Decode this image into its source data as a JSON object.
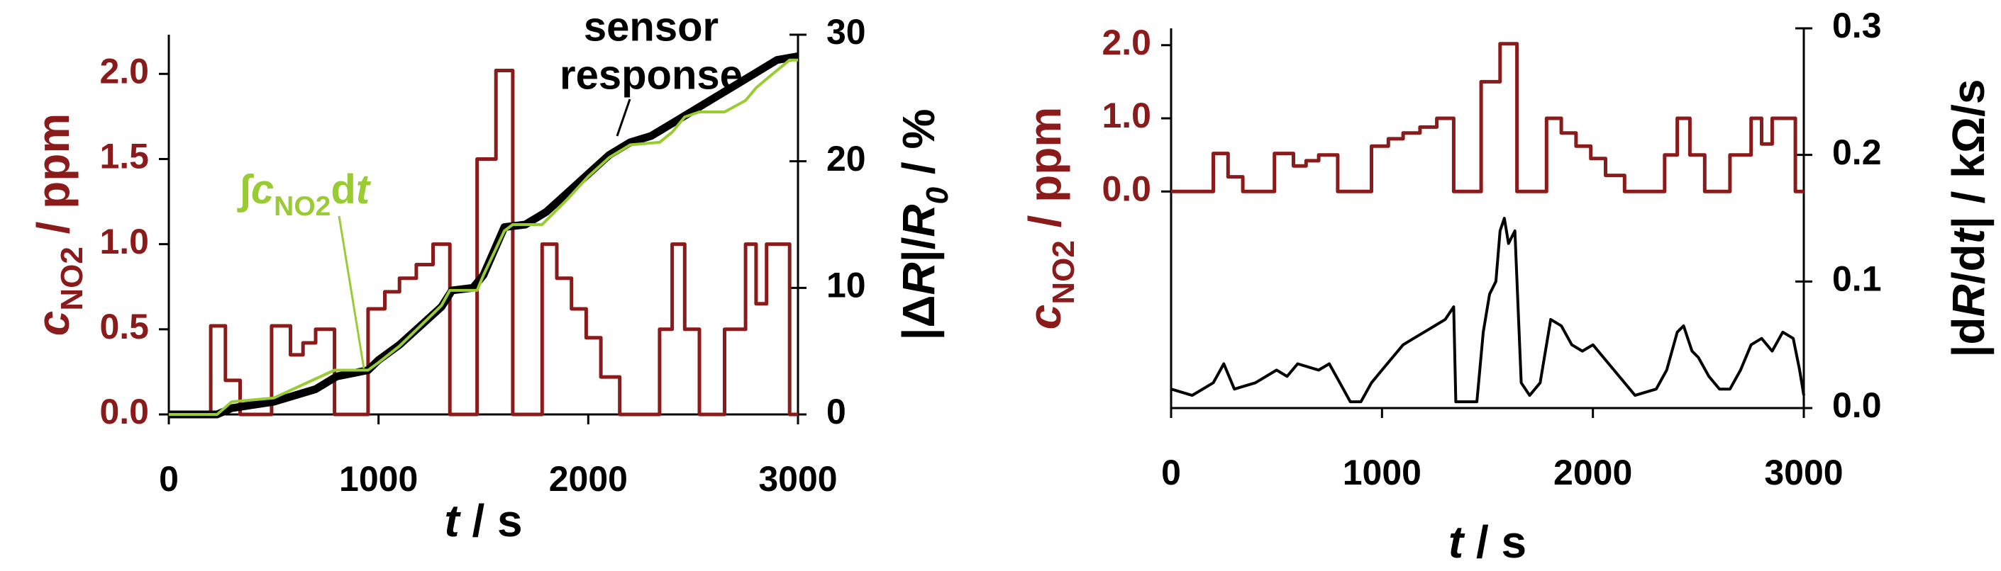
{
  "chart_data": [
    {
      "type": "line",
      "x_label_parts": [
        {
          "text": "t",
          "style": "italic"
        },
        {
          "text": " / s",
          "style": "normal"
        }
      ],
      "y_label_parts": [
        {
          "text": "c",
          "style": "italic"
        },
        {
          "text": "NO2",
          "style": "sub"
        },
        {
          "text": " / ppm",
          "style": "normal"
        }
      ],
      "y2_label_parts": [
        {
          "text": "|Δ",
          "style": "normal"
        },
        {
          "text": "R",
          "style": "italic"
        },
        {
          "text": "|/",
          "style": "normal"
        },
        {
          "text": "R",
          "style": "italic"
        },
        {
          "text": "0",
          "style": "italic-sub"
        },
        {
          "text": " / %",
          "style": "normal"
        }
      ],
      "xlim": [
        0,
        3000
      ],
      "xticks": [
        0,
        1000,
        2000,
        3000
      ],
      "ylim": [
        0,
        2.23
      ],
      "yticks": [
        {
          "value": 0,
          "label": "0.0"
        },
        {
          "value": 0.5,
          "label": "0.5"
        },
        {
          "value": 1,
          "label": "1.0"
        },
        {
          "value": 1.5,
          "label": "1.5"
        },
        {
          "value": 2,
          "label": "2.0"
        }
      ],
      "y2lim": [
        0,
        30
      ],
      "y2ticks": [
        0,
        10,
        20,
        30
      ],
      "y_color": "#8b1a1a",
      "series": [
        {
          "color": "#8b1a1a",
          "axis": "y",
          "width": 5,
          "x": [
            0,
            200,
            200,
            270,
            270,
            340,
            340,
            490,
            490,
            580,
            580,
            640,
            640,
            700,
            700,
            790,
            790,
            950,
            950,
            1030,
            1030,
            1100,
            1100,
            1180,
            1180,
            1260,
            1260,
            1340,
            1340,
            1470,
            1470,
            1560,
            1560,
            1640,
            1640,
            1780,
            1780,
            1850,
            1850,
            1920,
            1920,
            1990,
            1990,
            2060,
            2060,
            2150,
            2150,
            2340,
            2340,
            2400,
            2400,
            2460,
            2460,
            2530,
            2530,
            2650,
            2650,
            2750,
            2750,
            2800,
            2800,
            2850,
            2850,
            2960,
            2960,
            3000
          ],
          "values": [
            0,
            0,
            0.52,
            0.52,
            0.2,
            0.2,
            0,
            0,
            0.52,
            0.52,
            0.35,
            0.35,
            0.42,
            0.42,
            0.5,
            0.5,
            0,
            0,
            0.62,
            0.62,
            0.72,
            0.72,
            0.8,
            0.8,
            0.88,
            0.88,
            1.0,
            1.0,
            0,
            0,
            1.5,
            1.5,
            2.02,
            2.02,
            0,
            0,
            1.0,
            1.0,
            0.8,
            0.8,
            0.62,
            0.62,
            0.45,
            0.45,
            0.22,
            0.22,
            0,
            0,
            0.5,
            0.5,
            1.0,
            1.0,
            0.5,
            0.5,
            0,
            0,
            0.5,
            0.5,
            1.0,
            1.0,
            0.65,
            0.65,
            1.0,
            1.0,
            0,
            0
          ]
        },
        {
          "color": "#000000",
          "axis": "y2",
          "width": 11,
          "name_lines": [
            "sensor",
            "response"
          ],
          "x": [
            0,
            230,
            300,
            500,
            700,
            800,
            950,
            1000,
            1100,
            1200,
            1300,
            1350,
            1450,
            1500,
            1600,
            1700,
            1800,
            1900,
            2000,
            2100,
            2200,
            2300,
            2400,
            2500,
            2600,
            2700,
            2800,
            2900,
            3000
          ],
          "values": [
            0,
            0,
            0.5,
            1,
            2,
            3,
            3.5,
            4.3,
            5.5,
            7,
            8.5,
            9.8,
            10,
            11,
            14.8,
            15,
            16,
            17.5,
            19,
            20.5,
            21.5,
            22,
            23,
            24,
            25,
            26,
            27,
            28,
            28.3
          ]
        },
        {
          "color": "#99cc33",
          "axis": "y2",
          "width": 4,
          "name_parts": [
            {
              "text": "∫",
              "style": "normal"
            },
            {
              "text": "c",
              "style": "italic"
            },
            {
              "text": "NO2",
              "style": "sub"
            },
            {
              "text": "d",
              "style": "normal"
            },
            {
              "text": "t",
              "style": "italic"
            }
          ],
          "x": [
            0,
            230,
            300,
            500,
            790,
            950,
            1000,
            1100,
            1200,
            1300,
            1340,
            1470,
            1500,
            1600,
            1640,
            1780,
            1900,
            2000,
            2100,
            2200,
            2340,
            2400,
            2460,
            2530,
            2650,
            2750,
            2800,
            2850,
            2960,
            3000
          ],
          "values": [
            0,
            0,
            1,
            1.3,
            3.5,
            3.5,
            4.1,
            5.4,
            7,
            8.6,
            9.8,
            9.8,
            11,
            14.5,
            15,
            15,
            17,
            18.8,
            20.3,
            21.3,
            21.5,
            22.3,
            23.5,
            23.9,
            23.9,
            24.8,
            25.8,
            26.5,
            28,
            28
          ]
        }
      ]
    },
    {
      "type": "line",
      "x_label_parts": [
        {
          "text": "t",
          "style": "italic"
        },
        {
          "text": " / s",
          "style": "normal"
        }
      ],
      "y_label_parts": [
        {
          "text": "c",
          "style": "italic"
        },
        {
          "text": "NO2",
          "style": "sub"
        },
        {
          "text": " / ppm",
          "style": "normal"
        }
      ],
      "y2_label_parts": [
        {
          "text": "|d",
          "style": "normal"
        },
        {
          "text": "R",
          "style": "italic"
        },
        {
          "text": "/d",
          "style": "normal"
        },
        {
          "text": "t",
          "style": "italic"
        },
        {
          "text": "| / kΩ/s",
          "style": "normal"
        }
      ],
      "xlim": [
        0,
        3000
      ],
      "xticks": [
        0,
        1000,
        2000,
        3000
      ],
      "ylim": [
        -2.96,
        2.23
      ],
      "yticks": [
        {
          "value": 0,
          "label": "0.0"
        },
        {
          "value": 1,
          "label": "1.0"
        },
        {
          "value": 2,
          "label": "2.0"
        }
      ],
      "y2lim": [
        0,
        0.3
      ],
      "y2ticks": [
        {
          "value": 0,
          "label": "0.0"
        },
        {
          "value": 0.1,
          "label": "0.1"
        },
        {
          "value": 0.2,
          "label": "0.2"
        },
        {
          "value": 0.3,
          "label": "0.3"
        }
      ],
      "y_color": "#8b1a1a",
      "series": [
        {
          "color": "#8b1a1a",
          "axis": "y",
          "width": 5,
          "x": [
            0,
            200,
            200,
            270,
            270,
            340,
            340,
            490,
            490,
            580,
            580,
            640,
            640,
            700,
            700,
            790,
            790,
            950,
            950,
            1030,
            1030,
            1100,
            1100,
            1180,
            1180,
            1260,
            1260,
            1340,
            1340,
            1470,
            1470,
            1560,
            1560,
            1640,
            1640,
            1780,
            1780,
            1850,
            1850,
            1920,
            1920,
            1990,
            1990,
            2060,
            2060,
            2150,
            2150,
            2340,
            2340,
            2400,
            2400,
            2460,
            2460,
            2530,
            2530,
            2650,
            2650,
            2750,
            2750,
            2800,
            2800,
            2850,
            2850,
            2960,
            2960,
            3000
          ],
          "values": [
            0,
            0,
            0.52,
            0.52,
            0.2,
            0.2,
            0,
            0,
            0.52,
            0.52,
            0.35,
            0.35,
            0.42,
            0.42,
            0.5,
            0.5,
            0,
            0,
            0.62,
            0.62,
            0.72,
            0.72,
            0.8,
            0.8,
            0.88,
            0.88,
            1.0,
            1.0,
            0,
            0,
            1.5,
            1.5,
            2.02,
            2.02,
            0,
            0,
            1.0,
            1.0,
            0.8,
            0.8,
            0.62,
            0.62,
            0.45,
            0.45,
            0.22,
            0.22,
            0,
            0,
            0.5,
            0.5,
            1.0,
            1.0,
            0.5,
            0.5,
            0,
            0,
            0.5,
            0.5,
            1.0,
            1.0,
            0.65,
            0.65,
            1.0,
            1.0,
            0,
            0
          ]
        },
        {
          "color": "#000000",
          "axis": "y2",
          "width": 4,
          "x": [
            0,
            100,
            200,
            250,
            300,
            400,
            500,
            550,
            600,
            700,
            750,
            800,
            850,
            900,
            950,
            1000,
            1050,
            1100,
            1150,
            1200,
            1250,
            1300,
            1340,
            1350,
            1450,
            1480,
            1510,
            1540,
            1560,
            1580,
            1600,
            1630,
            1660,
            1700,
            1750,
            1800,
            1850,
            1900,
            1950,
            2000,
            2050,
            2100,
            2150,
            2200,
            2300,
            2350,
            2400,
            2430,
            2470,
            2500,
            2550,
            2600,
            2650,
            2700,
            2750,
            2800,
            2850,
            2900,
            2950,
            2980,
            3000
          ],
          "values": [
            0.015,
            0.01,
            0.02,
            0.035,
            0.015,
            0.02,
            0.03,
            0.025,
            0.035,
            0.03,
            0.035,
            0.02,
            0.005,
            0.005,
            0.02,
            0.03,
            0.04,
            0.05,
            0.055,
            0.06,
            0.065,
            0.07,
            0.08,
            0.005,
            0.005,
            0.06,
            0.09,
            0.1,
            0.14,
            0.15,
            0.13,
            0.14,
            0.02,
            0.01,
            0.02,
            0.07,
            0.065,
            0.05,
            0.045,
            0.05,
            0.04,
            0.03,
            0.02,
            0.01,
            0.015,
            0.03,
            0.06,
            0.065,
            0.045,
            0.04,
            0.025,
            0.015,
            0.015,
            0.03,
            0.05,
            0.055,
            0.045,
            0.06,
            0.055,
            0.03,
            0.01
          ]
        }
      ]
    }
  ]
}
